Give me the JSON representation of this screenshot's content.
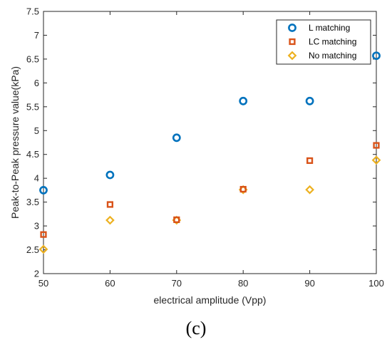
{
  "chart_data": {
    "type": "scatter",
    "xlabel": "electrical amplitude (Vpp)",
    "ylabel": "Peak-to-Peak pressure value(kPa)",
    "xlim": [
      50,
      100
    ],
    "ylim": [
      2,
      7.5
    ],
    "xticks": [
      "50",
      "60",
      "70",
      "80",
      "90",
      "100"
    ],
    "yticks": [
      "2",
      "2.5",
      "3",
      "3.5",
      "4",
      "4.5",
      "5",
      "5.5",
      "6",
      "6.5",
      "7",
      "7.5"
    ],
    "grid": false,
    "legend_position": "top-right",
    "series": [
      {
        "name": "L matching",
        "marker": "circle",
        "color": "#0072bd",
        "x": [
          50,
          60,
          70,
          80,
          90,
          100
        ],
        "y": [
          3.75,
          4.07,
          4.85,
          5.62,
          5.62,
          6.57
        ]
      },
      {
        "name": "LC matching",
        "marker": "square",
        "color": "#d95319",
        "x": [
          50,
          60,
          70,
          80,
          90,
          100
        ],
        "y": [
          2.82,
          3.45,
          3.13,
          3.77,
          4.37,
          4.69
        ]
      },
      {
        "name": "No matching",
        "marker": "diamond",
        "color": "#edb120",
        "x": [
          50,
          60,
          70,
          80,
          90,
          100
        ],
        "y": [
          2.51,
          3.12,
          3.12,
          3.76,
          3.76,
          4.38
        ]
      }
    ]
  },
  "caption": "(c)"
}
